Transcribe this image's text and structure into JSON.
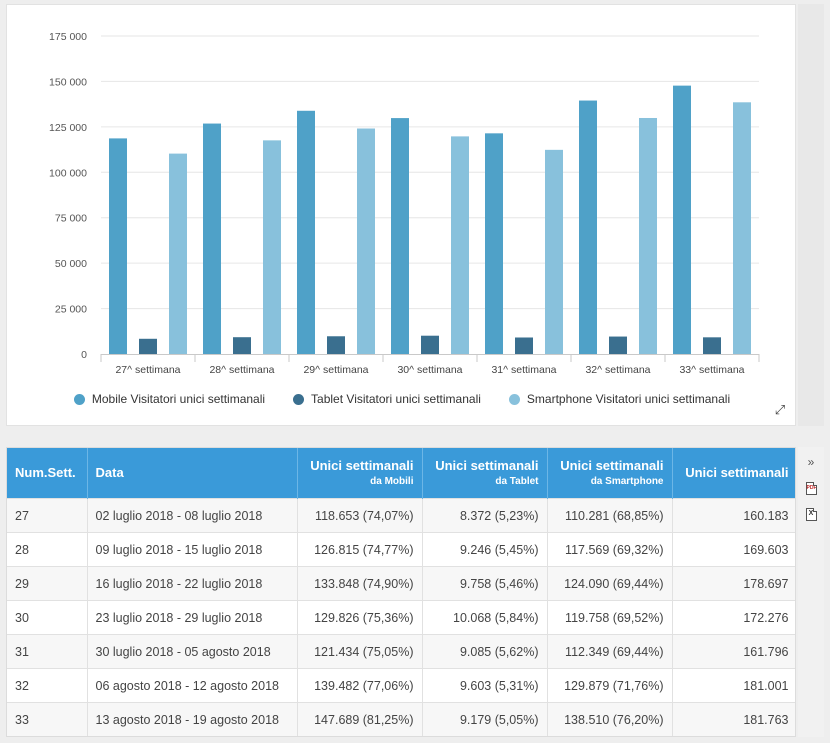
{
  "chart_data": {
    "type": "bar",
    "categories": [
      "27^ settimana",
      "28^ settimana",
      "29^ settimana",
      "30^ settimana",
      "31^ settimana",
      "32^ settimana",
      "33^ settimana"
    ],
    "series": [
      {
        "name": "Mobile Visitatori unici settimanali",
        "color": "#4fa1c8",
        "values": [
          118653,
          126815,
          133848,
          129826,
          121434,
          139482,
          147689
        ]
      },
      {
        "name": "Tablet Visitatori unici settimanali",
        "color": "#3a6f8f",
        "values": [
          8372,
          9246,
          9758,
          10068,
          9085,
          9603,
          9179
        ]
      },
      {
        "name": "Smartphone Visitatori unici settimanali",
        "color": "#88c1dc",
        "values": [
          110281,
          117569,
          124090,
          119758,
          112349,
          129879,
          138510
        ]
      }
    ],
    "ylim": [
      0,
      175000
    ],
    "yticks": [
      0,
      25000,
      50000,
      75000,
      100000,
      125000,
      150000,
      175000
    ],
    "ytick_labels": [
      "0",
      "25 000",
      "50 000",
      "75 000",
      "100 000",
      "125 000",
      "150 000",
      "175 000"
    ],
    "grid": true,
    "legend_position": "bottom"
  },
  "table": {
    "headers": {
      "num_sett": "Num.Sett.",
      "data": "Data",
      "mobili": "Unici settimanali",
      "mobili_sub": "da Mobili",
      "tablet": "Unici settimanali",
      "tablet_sub": "da Tablet",
      "smartphone": "Unici settimanali",
      "smartphone_sub": "da Smartphone",
      "totale": "Unici settimanali"
    },
    "rows": [
      {
        "num": "27",
        "data": "02 luglio 2018 - 08 luglio 2018",
        "mobili": "118.653 (74,07%)",
        "tablet": "8.372 (5,23%)",
        "smartphone": "110.281 (68,85%)",
        "totale": "160.183"
      },
      {
        "num": "28",
        "data": "09 luglio 2018 - 15 luglio 2018",
        "mobili": "126.815 (74,77%)",
        "tablet": "9.246 (5,45%)",
        "smartphone": "117.569 (69,32%)",
        "totale": "169.603"
      },
      {
        "num": "29",
        "data": "16 luglio 2018 - 22 luglio 2018",
        "mobili": "133.848 (74,90%)",
        "tablet": "9.758 (5,46%)",
        "smartphone": "124.090 (69,44%)",
        "totale": "178.697"
      },
      {
        "num": "30",
        "data": "23 luglio 2018 - 29 luglio 2018",
        "mobili": "129.826 (75,36%)",
        "tablet": "10.068 (5,84%)",
        "smartphone": "119.758 (69,52%)",
        "totale": "172.276"
      },
      {
        "num": "31",
        "data": "30 luglio 2018 - 05 agosto 2018",
        "mobili": "121.434 (75,05%)",
        "tablet": "9.085 (5,62%)",
        "smartphone": "112.349 (69,44%)",
        "totale": "161.796"
      },
      {
        "num": "32",
        "data": "06 agosto 2018 - 12 agosto 2018",
        "mobili": "139.482 (77,06%)",
        "tablet": "9.603 (5,31%)",
        "smartphone": "129.879 (71,76%)",
        "totale": "181.001"
      },
      {
        "num": "33",
        "data": "13 agosto 2018 - 19 agosto 2018",
        "mobili": "147.689 (81,25%)",
        "tablet": "9.179 (5,05%)",
        "smartphone": "138.510 (76,20%)",
        "totale": "181.763"
      }
    ]
  },
  "toolbar": {
    "collapse_glyph": "»",
    "pdf_label": "PDF",
    "xls_label": "X"
  }
}
